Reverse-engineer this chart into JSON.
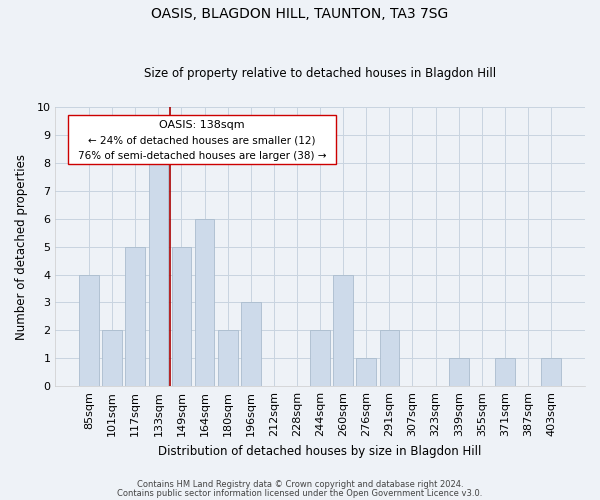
{
  "title": "OASIS, BLAGDON HILL, TAUNTON, TA3 7SG",
  "subtitle": "Size of property relative to detached houses in Blagdon Hill",
  "xlabel": "Distribution of detached houses by size in Blagdon Hill",
  "ylabel": "Number of detached properties",
  "bar_color": "#cddaea",
  "bar_edge_color": "#aabcce",
  "categories": [
    "85sqm",
    "101sqm",
    "117sqm",
    "133sqm",
    "149sqm",
    "164sqm",
    "180sqm",
    "196sqm",
    "212sqm",
    "228sqm",
    "244sqm",
    "260sqm",
    "276sqm",
    "291sqm",
    "307sqm",
    "323sqm",
    "339sqm",
    "355sqm",
    "371sqm",
    "387sqm",
    "403sqm"
  ],
  "values": [
    4,
    2,
    5,
    8,
    5,
    6,
    2,
    3,
    0,
    0,
    2,
    4,
    1,
    2,
    0,
    0,
    1,
    0,
    1,
    0,
    1
  ],
  "ylim": [
    0,
    10
  ],
  "yticks": [
    0,
    1,
    2,
    3,
    4,
    5,
    6,
    7,
    8,
    9,
    10
  ],
  "property_line_color": "#aa0000",
  "annotation_title": "OASIS: 138sqm",
  "annotation_line1": "← 24% of detached houses are smaller (12)",
  "annotation_line2": "76% of semi-detached houses are larger (38) →",
  "annotation_box_color": "white",
  "annotation_box_edge": "#cc0000",
  "footer1": "Contains HM Land Registry data © Crown copyright and database right 2024.",
  "footer2": "Contains public sector information licensed under the Open Government Licence v3.0.",
  "grid_color": "#c8d4e0",
  "background_color": "#eef2f7"
}
